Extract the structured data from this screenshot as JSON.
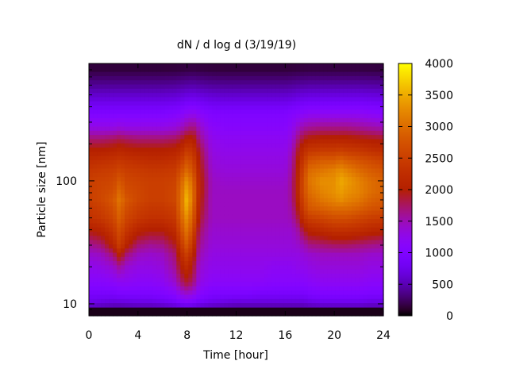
{
  "chart_data": {
    "type": "heatmap",
    "title": "dN / d log d (3/19/19)",
    "xlabel": "Time [hour]",
    "ylabel": "Particle size [nm]",
    "x_range": [
      0,
      24
    ],
    "y_range": [
      8,
      900
    ],
    "y_scale": "log",
    "x_ticks": [
      0,
      4,
      8,
      12,
      16,
      20,
      24
    ],
    "x_tick_labels": [
      "0",
      "4",
      "8",
      "12",
      "16",
      "20",
      "24"
    ],
    "y_ticks": [
      10,
      100
    ],
    "y_tick_labels": [
      "10",
      "100"
    ],
    "colorbar": {
      "range": [
        0,
        4000
      ],
      "ticks": [
        0,
        500,
        1000,
        1500,
        2000,
        2500,
        3000,
        3500,
        4000
      ],
      "tick_labels": [
        "0",
        "500",
        "1000",
        "1500",
        "2000",
        "2500",
        "3000",
        "3500",
        "4000"
      ],
      "colormap": "gnuplot-palette-black-purple-red-orange-yellow"
    },
    "grid": false,
    "cells": {
      "x_hours": [
        0,
        1,
        2,
        2.5,
        3,
        4,
        5,
        6,
        7,
        7.5,
        8,
        8.5,
        9,
        10,
        11,
        12,
        13,
        14,
        15,
        16,
        16.5,
        17,
        17.5,
        18,
        19,
        20,
        20.5,
        21,
        22,
        23,
        24
      ],
      "sizes_nm": [
        9,
        10,
        12,
        15,
        20,
        25,
        30,
        40,
        50,
        60,
        70,
        80,
        100,
        120,
        150,
        180,
        220,
        270,
        350,
        450,
        600,
        800
      ],
      "description_of_layout": "values rows correspond to sizes_nm, columns to x_hours",
      "values": [
        [
          300,
          300,
          300,
          300,
          300,
          300,
          300,
          300,
          300,
          300,
          300,
          300,
          300,
          300,
          300,
          300,
          300,
          300,
          300,
          300,
          300,
          300,
          300,
          300,
          300,
          300,
          300,
          300,
          300,
          300,
          300
        ],
        [
          700,
          650,
          600,
          600,
          620,
          650,
          650,
          700,
          800,
          900,
          950,
          900,
          800,
          700,
          650,
          600,
          600,
          600,
          600,
          600,
          600,
          600,
          600,
          650,
          700,
          700,
          700,
          700,
          700,
          650,
          650
        ],
        [
          900,
          900,
          900,
          950,
          950,
          950,
          950,
          1000,
          1100,
          1300,
          1400,
          1300,
          1100,
          950,
          950,
          950,
          950,
          900,
          900,
          900,
          900,
          900,
          900,
          950,
          1000,
          1000,
          1000,
          1000,
          1000,
          950,
          950
        ],
        [
          1100,
          1100,
          1150,
          1200,
          1200,
          1150,
          1150,
          1200,
          1400,
          1700,
          1900,
          1700,
          1300,
          1150,
          1150,
          1150,
          1150,
          1150,
          1100,
          1100,
          1100,
          1100,
          1100,
          1150,
          1200,
          1200,
          1200,
          1200,
          1200,
          1150,
          1150
        ],
        [
          1250,
          1300,
          1400,
          1600,
          1400,
          1300,
          1300,
          1350,
          1600,
          2000,
          2200,
          1900,
          1400,
          1250,
          1250,
          1250,
          1250,
          1250,
          1200,
          1200,
          1200,
          1250,
          1250,
          1300,
          1350,
          1350,
          1350,
          1350,
          1350,
          1300,
          1300
        ],
        [
          1400,
          1450,
          1700,
          2100,
          1700,
          1450,
          1400,
          1450,
          1700,
          2200,
          2500,
          2100,
          1500,
          1300,
          1300,
          1300,
          1300,
          1300,
          1300,
          1300,
          1300,
          1300,
          1350,
          1400,
          1450,
          1450,
          1450,
          1450,
          1450,
          1400,
          1400
        ],
        [
          1600,
          1700,
          2100,
          2500,
          2100,
          1700,
          1600,
          1650,
          1900,
          2400,
          2800,
          2300,
          1600,
          1350,
          1350,
          1350,
          1350,
          1350,
          1350,
          1350,
          1350,
          1400,
          1500,
          1650,
          1700,
          1750,
          1750,
          1750,
          1700,
          1650,
          1600
        ],
        [
          2000,
          2100,
          2400,
          2700,
          2400,
          2100,
          2000,
          2000,
          2200,
          2700,
          3100,
          2600,
          1750,
          1400,
          1400,
          1400,
          1400,
          1400,
          1400,
          1400,
          1400,
          1550,
          1900,
          2100,
          2200,
          2300,
          2300,
          2300,
          2250,
          2150,
          2100
        ],
        [
          2300,
          2400,
          2600,
          2900,
          2600,
          2400,
          2300,
          2300,
          2400,
          2900,
          3300,
          2800,
          1900,
          1450,
          1450,
          1450,
          1450,
          1450,
          1450,
          1450,
          1500,
          1800,
          2300,
          2500,
          2600,
          2700,
          2700,
          2700,
          2600,
          2500,
          2450
        ],
        [
          2400,
          2500,
          2700,
          3000,
          2700,
          2500,
          2400,
          2400,
          2500,
          3000,
          3500,
          2900,
          2000,
          1450,
          1450,
          1450,
          1450,
          1450,
          1450,
          1450,
          1550,
          1950,
          2500,
          2800,
          2900,
          3000,
          3000,
          3000,
          2900,
          2750,
          2700
        ],
        [
          2500,
          2600,
          2800,
          3100,
          2800,
          2600,
          2500,
          2500,
          2600,
          3000,
          3600,
          3000,
          2050,
          1450,
          1450,
          1450,
          1450,
          1450,
          1450,
          1450,
          1600,
          2050,
          2600,
          2900,
          3100,
          3200,
          3300,
          3200,
          3100,
          2900,
          2800
        ],
        [
          2500,
          2600,
          2700,
          3000,
          2700,
          2600,
          2500,
          2500,
          2600,
          3000,
          3500,
          3000,
          2100,
          1450,
          1450,
          1450,
          1450,
          1450,
          1450,
          1450,
          1600,
          2100,
          2700,
          3000,
          3200,
          3300,
          3400,
          3300,
          3200,
          3000,
          2900
        ],
        [
          2500,
          2550,
          2600,
          2800,
          2600,
          2550,
          2500,
          2500,
          2550,
          2900,
          3300,
          2900,
          2100,
          1450,
          1400,
          1400,
          1400,
          1400,
          1400,
          1400,
          1600,
          2100,
          2700,
          3100,
          3300,
          3300,
          3500,
          3400,
          3200,
          3000,
          2900
        ],
        [
          2400,
          2450,
          2500,
          2600,
          2500,
          2450,
          2400,
          2400,
          2450,
          2700,
          3000,
          2700,
          2050,
          1400,
          1350,
          1350,
          1350,
          1350,
          1350,
          1350,
          1550,
          2050,
          2600,
          3000,
          3100,
          3200,
          3300,
          3200,
          3000,
          2850,
          2750
        ],
        [
          2200,
          2250,
          2300,
          2350,
          2300,
          2250,
          2200,
          2200,
          2250,
          2400,
          2700,
          2500,
          1950,
          1350,
          1300,
          1300,
          1300,
          1300,
          1300,
          1300,
          1500,
          1950,
          2400,
          2700,
          2800,
          2800,
          2900,
          2800,
          2700,
          2600,
          2500
        ],
        [
          2000,
          2000,
          2050,
          2100,
          2050,
          2000,
          2000,
          2000,
          2050,
          2150,
          2400,
          2300,
          1850,
          1300,
          1250,
          1250,
          1250,
          1250,
          1250,
          1250,
          1400,
          1850,
          2200,
          2350,
          2400,
          2400,
          2450,
          2400,
          2350,
          2250,
          2200
        ],
        [
          1700,
          1700,
          1750,
          1800,
          1750,
          1700,
          1700,
          1700,
          1750,
          1850,
          2050,
          2050,
          1650,
          1250,
          1200,
          1200,
          1200,
          1200,
          1200,
          1200,
          1300,
          1650,
          1900,
          2000,
          2050,
          2050,
          2050,
          2050,
          2000,
          1950,
          1900
        ],
        [
          1300,
          1300,
          1300,
          1350,
          1300,
          1300,
          1300,
          1300,
          1350,
          1450,
          1600,
          1700,
          1450,
          1150,
          1100,
          1100,
          1100,
          1100,
          1100,
          1100,
          1200,
          1400,
          1550,
          1600,
          1650,
          1650,
          1650,
          1650,
          1600,
          1550,
          1500
        ],
        [
          1000,
          1000,
          1000,
          1000,
          1000,
          1000,
          1000,
          1000,
          1050,
          1100,
          1200,
          1250,
          1150,
          1000,
          1000,
          1000,
          1000,
          1000,
          1000,
          1000,
          1050,
          1100,
          1150,
          1200,
          1200,
          1200,
          1200,
          1200,
          1200,
          1150,
          1100
        ],
        [
          700,
          700,
          700,
          700,
          700,
          700,
          700,
          700,
          720,
          750,
          800,
          820,
          780,
          720,
          700,
          700,
          700,
          700,
          700,
          700,
          720,
          760,
          780,
          800,
          800,
          800,
          800,
          800,
          800,
          780,
          760
        ],
        [
          400,
          400,
          400,
          400,
          400,
          400,
          400,
          400,
          410,
          430,
          450,
          460,
          440,
          410,
          400,
          400,
          400,
          400,
          400,
          400,
          410,
          430,
          440,
          450,
          450,
          450,
          450,
          450,
          450,
          440,
          430
        ],
        [
          150,
          150,
          150,
          150,
          150,
          150,
          150,
          150,
          155,
          160,
          170,
          175,
          165,
          155,
          150,
          150,
          150,
          150,
          150,
          150,
          155,
          160,
          165,
          170,
          170,
          170,
          170,
          170,
          170,
          165,
          160
        ]
      ]
    }
  }
}
